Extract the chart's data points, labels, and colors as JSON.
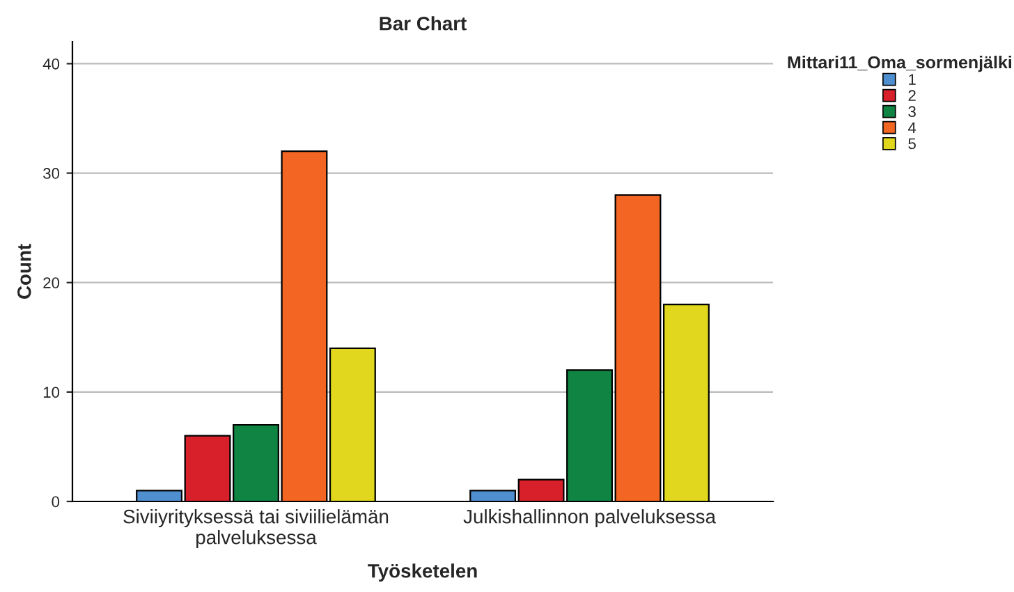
{
  "chart_data": {
    "type": "bar",
    "title": "Bar Chart",
    "xlabel": "Työsketelen",
    "ylabel": "Count",
    "legend_title": "Mittari11_Oma_sormenjälki",
    "categories": [
      "Siviiyrityksessä tai siviilielämän\npalveluksessa",
      "Julkishallinnon palveluksessa"
    ],
    "series": [
      {
        "name": "1",
        "color": "#4f8fd0",
        "values": [
          1,
          1
        ]
      },
      {
        "name": "2",
        "color": "#d7202a",
        "values": [
          6,
          2
        ]
      },
      {
        "name": "3",
        "color": "#108443",
        "values": [
          7,
          12
        ]
      },
      {
        "name": "4",
        "color": "#f26522",
        "values": [
          32,
          28
        ]
      },
      {
        "name": "5",
        "color": "#e0d71e",
        "values": [
          14,
          18
        ]
      }
    ],
    "ylim": [
      0,
      42
    ],
    "yticks": [
      0,
      10,
      20,
      30,
      40
    ],
    "grid": "y",
    "legend": "top right"
  }
}
